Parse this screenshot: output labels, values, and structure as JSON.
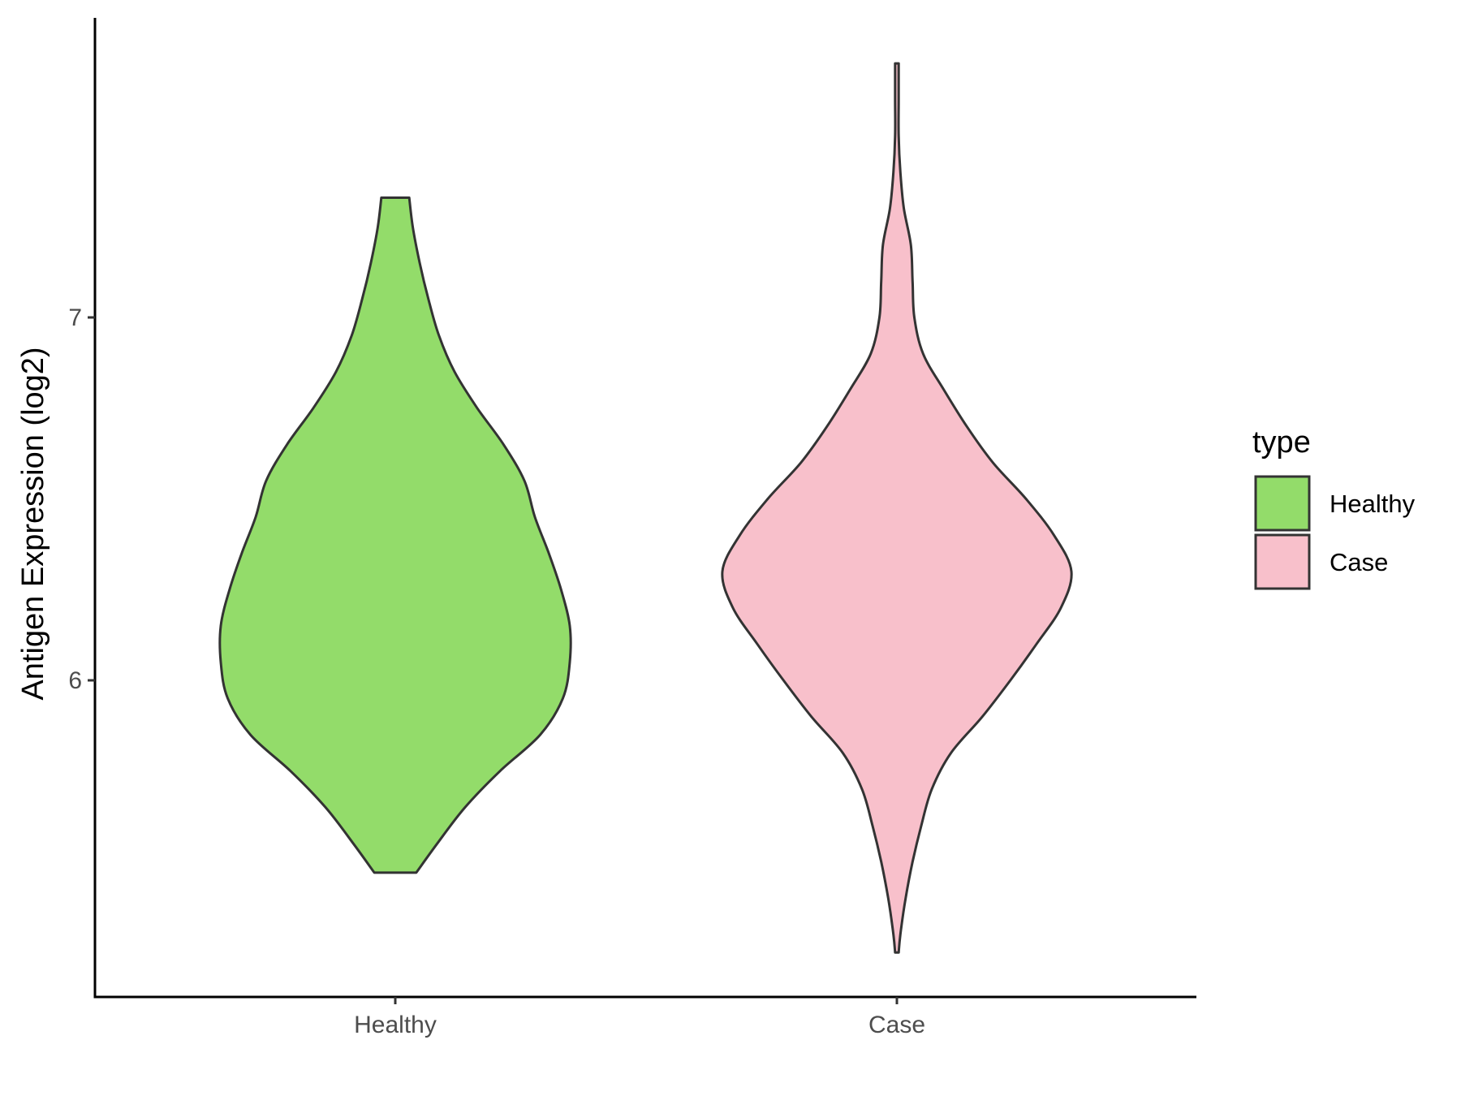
{
  "chart_data": {
    "type": "violin",
    "ylabel": "Antigen Expression (log2)",
    "xlabel": "",
    "categories": [
      "Healthy",
      "Case"
    ],
    "ylim": [
      5.1,
      7.8
    ],
    "yticks": [
      6,
      7
    ],
    "grid": false,
    "legend": {
      "title": "type",
      "placement": "right",
      "entries": [
        {
          "label": "Healthy",
          "color": "#93DC6A"
        },
        {
          "label": "Case",
          "color": "#F8C0CB"
        }
      ]
    },
    "series": [
      {
        "category": "Healthy",
        "color": "#93DC6A",
        "y_min": 5.47,
        "y_max": 7.33,
        "density_profile": [
          [
            5.47,
            0.12
          ],
          [
            5.55,
            0.24
          ],
          [
            5.65,
            0.4
          ],
          [
            5.75,
            0.6
          ],
          [
            5.85,
            0.83
          ],
          [
            5.95,
            0.96
          ],
          [
            6.05,
            1.0
          ],
          [
            6.15,
            1.0
          ],
          [
            6.25,
            0.95
          ],
          [
            6.35,
            0.88
          ],
          [
            6.45,
            0.8
          ],
          [
            6.55,
            0.74
          ],
          [
            6.65,
            0.62
          ],
          [
            6.75,
            0.47
          ],
          [
            6.85,
            0.34
          ],
          [
            6.95,
            0.25
          ],
          [
            7.05,
            0.19
          ],
          [
            7.15,
            0.14
          ],
          [
            7.25,
            0.1
          ],
          [
            7.33,
            0.08
          ]
        ]
      },
      {
        "category": "Case",
        "color": "#F8C0CB",
        "y_min": 5.25,
        "y_max": 7.7,
        "density_profile": [
          [
            5.25,
            0.01
          ],
          [
            5.3,
            0.02
          ],
          [
            5.4,
            0.05
          ],
          [
            5.5,
            0.09
          ],
          [
            5.6,
            0.14
          ],
          [
            5.7,
            0.2
          ],
          [
            5.8,
            0.31
          ],
          [
            5.9,
            0.49
          ],
          [
            6.0,
            0.65
          ],
          [
            6.1,
            0.8
          ],
          [
            6.2,
            0.94
          ],
          [
            6.3,
            1.0
          ],
          [
            6.4,
            0.9
          ],
          [
            6.5,
            0.74
          ],
          [
            6.6,
            0.55
          ],
          [
            6.7,
            0.4
          ],
          [
            6.8,
            0.27
          ],
          [
            6.9,
            0.15
          ],
          [
            7.0,
            0.1
          ],
          [
            7.1,
            0.09
          ],
          [
            7.2,
            0.08
          ],
          [
            7.3,
            0.04
          ],
          [
            7.4,
            0.02
          ],
          [
            7.5,
            0.01
          ],
          [
            7.6,
            0.01
          ],
          [
            7.7,
            0.01
          ]
        ]
      }
    ]
  }
}
